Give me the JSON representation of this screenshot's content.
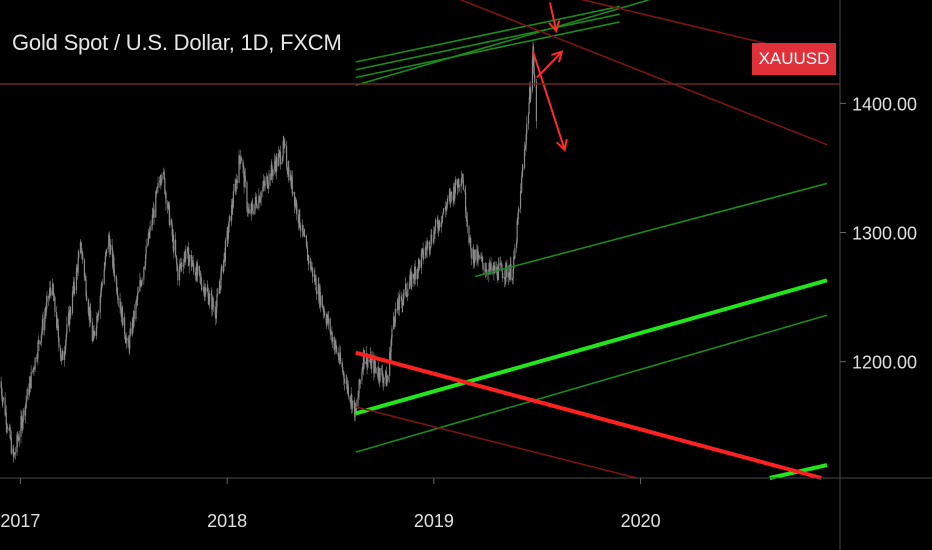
{
  "title": "Gold Spot / U.S. Dollar, 1D, FXCM",
  "symbol_badge": "XAUUSD",
  "colors": {
    "background": "#000000",
    "candle": "#8a8a8a",
    "bright_green": "#22e51c",
    "dark_green": "#1c8a1c",
    "red": "#ff2020",
    "dark_red": "#7a1414",
    "arrow": "#ff2a2a",
    "price_line": "#6a2424",
    "badge": "#e0303a"
  },
  "chart_data": {
    "type": "line",
    "title": "Gold Spot / U.S. Dollar, 1D, FXCM",
    "x_axis": {
      "type": "date",
      "range": [
        "2016-11-26",
        "2020-12-18"
      ],
      "tick_labels": [
        "2017",
        "2018",
        "2019",
        "2020"
      ],
      "tick_values": [
        "2017-01-01",
        "2018-01-01",
        "2019-01-01",
        "2020-01-01"
      ]
    },
    "y_axis": {
      "range": [
        1110,
        1480
      ],
      "tick_labels": [
        "1400.00",
        "1300.00",
        "1200.00"
      ],
      "tick_values": [
        1400,
        1300,
        1200
      ],
      "position": "right"
    },
    "grid": false,
    "series": [
      {
        "x": [
          "2016-11-26",
          "2016-12-20",
          "2017-02-25",
          "2017-03-15",
          "2017-04-18",
          "2017-05-09",
          "2017-06-06",
          "2017-07-10",
          "2017-09-08",
          "2017-10-06",
          "2017-10-20",
          "2017-12-12",
          "2018-01-25",
          "2018-02-08",
          "2018-04-11",
          "2018-05-21",
          "2018-08-16",
          "2018-08-30",
          "2018-10-11",
          "2018-10-22",
          "2019-02-20",
          "2019-03-07",
          "2019-04-11",
          "2019-05-21",
          "2019-06-20",
          "2019-06-25",
          "2019-07-01"
        ],
        "y": [
          1185,
          1125,
          1260,
          1200,
          1290,
          1215,
          1295,
          1210,
          1350,
          1268,
          1285,
          1240,
          1362,
          1313,
          1365,
          1285,
          1160,
          1205,
          1185,
          1235,
          1346,
          1285,
          1270,
          1270,
          1410,
          1440,
          1385
        ]
      }
    ],
    "drawn_lines": [
      {
        "color": "bright_green",
        "from": [
          "2018-08-16",
          1160
        ],
        "to": [
          "2020-11-25",
          1263
        ]
      },
      {
        "color": "bright_green",
        "from": [
          "2020-08-16",
          1110
        ],
        "to": [
          "2020-11-25",
          1120
        ]
      },
      {
        "color": "dark_green",
        "from": [
          "2018-08-16",
          1130
        ],
        "to": [
          "2020-11-25",
          1236
        ]
      },
      {
        "color": "dark_green",
        "from": [
          "2019-03-15",
          1266
        ],
        "to": [
          "2020-11-25",
          1338
        ]
      },
      {
        "color": "dark_green",
        "from": [
          "2018-08-16",
          1432
        ],
        "to": [
          "2019-11-25",
          1475
        ]
      },
      {
        "color": "dark_green",
        "from": [
          "2018-08-16",
          1426
        ],
        "to": [
          "2019-11-25",
          1469
        ]
      },
      {
        "color": "dark_green",
        "from": [
          "2018-08-16",
          1420
        ],
        "to": [
          "2019-11-25",
          1463
        ]
      },
      {
        "color": "dark_green",
        "from": [
          "2018-08-16",
          1414
        ],
        "to": [
          "2020-01-15",
          1480
        ]
      },
      {
        "color": "red",
        "from": [
          "2018-08-16",
          1207
        ],
        "to": [
          "2020-11-15",
          1110
        ]
      },
      {
        "color": "dark_red",
        "from": [
          "2018-08-16",
          1165
        ],
        "to": [
          "2019-12-25",
          1110
        ]
      },
      {
        "color": "dark_red",
        "from": [
          "2019-02-01",
          1483
        ],
        "to": [
          "2020-11-25",
          1368
        ]
      },
      {
        "color": "dark_red",
        "from": [
          "2019-08-25",
          1483
        ],
        "to": [
          "2020-11-25",
          1435
        ]
      }
    ],
    "arrows": [
      {
        "from": [
          "2019-06-25",
          1440
        ],
        "to": [
          "2019-08-20",
          1364
        ]
      },
      {
        "from": [
          "2019-07-02",
          1420
        ],
        "to": [
          "2019-08-15",
          1440
        ]
      },
      {
        "from": [
          "2019-07-25",
          1478
        ],
        "to": [
          "2019-08-05",
          1456
        ]
      }
    ],
    "price_line": 1415
  }
}
